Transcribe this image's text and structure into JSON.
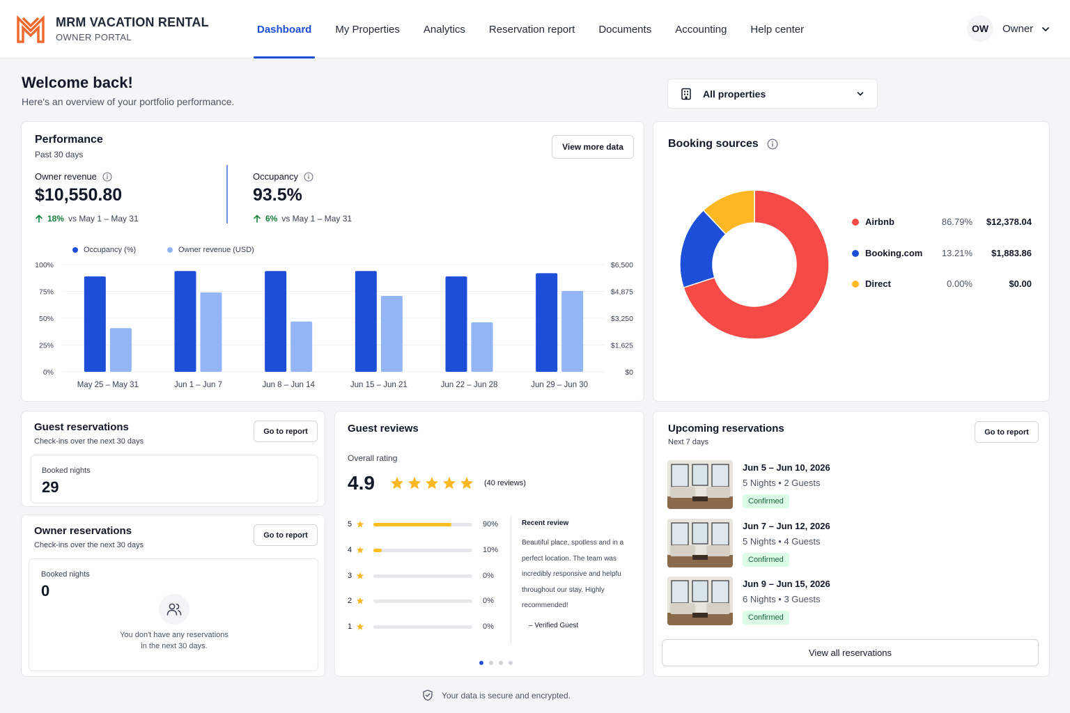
{
  "brand": {
    "name": "MRM VACATION RENTAL",
    "subtitle": "OWNER PORTAL"
  },
  "nav": [
    {
      "label": "Dashboard",
      "active": true
    },
    {
      "label": "My Properties"
    },
    {
      "label": "Analytics"
    },
    {
      "label": "Reservation report"
    },
    {
      "label": "Documents"
    },
    {
      "label": "Accounting"
    },
    {
      "label": "Help center"
    }
  ],
  "user": {
    "initials": "OW",
    "label": "Owner"
  },
  "welcome": {
    "title": "Welcome back!",
    "subtitle": "Here's an overview of your portfolio performance."
  },
  "property_filter": {
    "value": "All properties"
  },
  "performance": {
    "title": "Performance",
    "period": "Past 30 days",
    "button": "View more data",
    "revenue": {
      "label": "Owner revenue",
      "value": "$10,550.80",
      "delta": "18%",
      "compare": "vs May 1 – May 31"
    },
    "occupancy": {
      "label": "Occupancy",
      "value": "93.5%",
      "delta": "6%",
      "compare": "vs May 1 – May 31"
    }
  },
  "chart_data": {
    "type": "bar",
    "categories": [
      "May 25 – May 31",
      "Jun 1 – Jun 7",
      "Jun 8 – Jun 14",
      "Jun 15 – Jun 21",
      "Jun 22 – Jun 28",
      "Jun 29 – Jun 30"
    ],
    "series": [
      {
        "name": "Occupancy (%)",
        "axis": "left",
        "color": "#1d4ed8",
        "values": [
          89,
          94,
          94,
          94,
          89,
          92
        ]
      },
      {
        "name": "Owner revenue (USD)",
        "axis": "right",
        "color": "#93b4f5",
        "values": [
          2650,
          4810,
          3050,
          4600,
          3000,
          4900
        ]
      }
    ],
    "left_axis": {
      "ticks": [
        "100%",
        "75%",
        "50%",
        "25%",
        "0%"
      ],
      "ylim": [
        0,
        100
      ]
    },
    "right_axis": {
      "ticks": [
        "$6,500",
        "$4,875",
        "$3,250",
        "$1,625",
        "$0"
      ],
      "ylim": [
        0,
        6500
      ]
    },
    "grid": true,
    "legend": "top-left"
  },
  "booking_sources": {
    "title": "Booking sources",
    "chart_data": {
      "type": "pie",
      "donut": true,
      "slices": [
        {
          "name": "Airbnb",
          "percent": "86.79%",
          "amount": "$12,378.04",
          "value": 86.79,
          "color": "#f54a45"
        },
        {
          "name": "Booking.com",
          "percent": "13.21%",
          "amount": "$1,883.86",
          "value": 13.21,
          "color": "#1d4ed8"
        },
        {
          "name": "Direct",
          "percent": "0.00%",
          "amount": "$0.00",
          "value": 0,
          "color": "#fbb724"
        }
      ]
    }
  },
  "guest_reservations": {
    "title": "Guest reservations",
    "subtitle": "Check-ins over the next 30 days",
    "button": "Go to report",
    "stat_label": "Booked nights",
    "stat_value": "29"
  },
  "owner_reservations": {
    "title": "Owner reservations",
    "subtitle": "Check-ins over the next 30 days",
    "button": "Go to report",
    "stat_label": "Booked nights",
    "stat_value": "0",
    "empty_line1": "You don't have any reservations",
    "empty_line2": "in the next 30 days."
  },
  "guest_reviews": {
    "title": "Guest reviews",
    "overall_label": "Overall rating",
    "rating": "4.9",
    "stars": 5,
    "count": "(40 reviews)",
    "distribution": [
      {
        "stars": "5",
        "percent": "90%",
        "value": 90
      },
      {
        "stars": "4",
        "percent": "10%",
        "value": 10
      },
      {
        "stars": "3",
        "percent": "0%",
        "value": 0
      },
      {
        "stars": "2",
        "percent": "0%",
        "value": 0
      },
      {
        "stars": "1",
        "percent": "0%",
        "value": 0
      }
    ],
    "recent_label": "Recent review",
    "recent_lines": [
      "Beautiful place, spotless and in a",
      "perfect location. The team was",
      "incredibly responsive and helpfu",
      "throughout our stay. Highly",
      "recommended!"
    ],
    "recent_author": "– Verified Guest",
    "pager": {
      "pages": 4,
      "current": 1
    }
  },
  "upcoming": {
    "title": "Upcoming reservations",
    "subtitle": "Next 7 days",
    "button": "Go to report",
    "items": [
      {
        "dates": "Jun 5 – Jun 10, 2026",
        "meta": "5 Nights • 2 Guests",
        "status": "Confirmed"
      },
      {
        "dates": "Jun 7 – Jun 12, 2026",
        "meta": "5 Nights • 4 Guests",
        "status": "Confirmed"
      },
      {
        "dates": "Jun 9 – Jun 15, 2026",
        "meta": "6 Nights • 3 Guests",
        "status": "Confirmed"
      }
    ],
    "view_all": "View all reservations"
  },
  "footer": {
    "note": "Your data is secure and encrypted."
  }
}
